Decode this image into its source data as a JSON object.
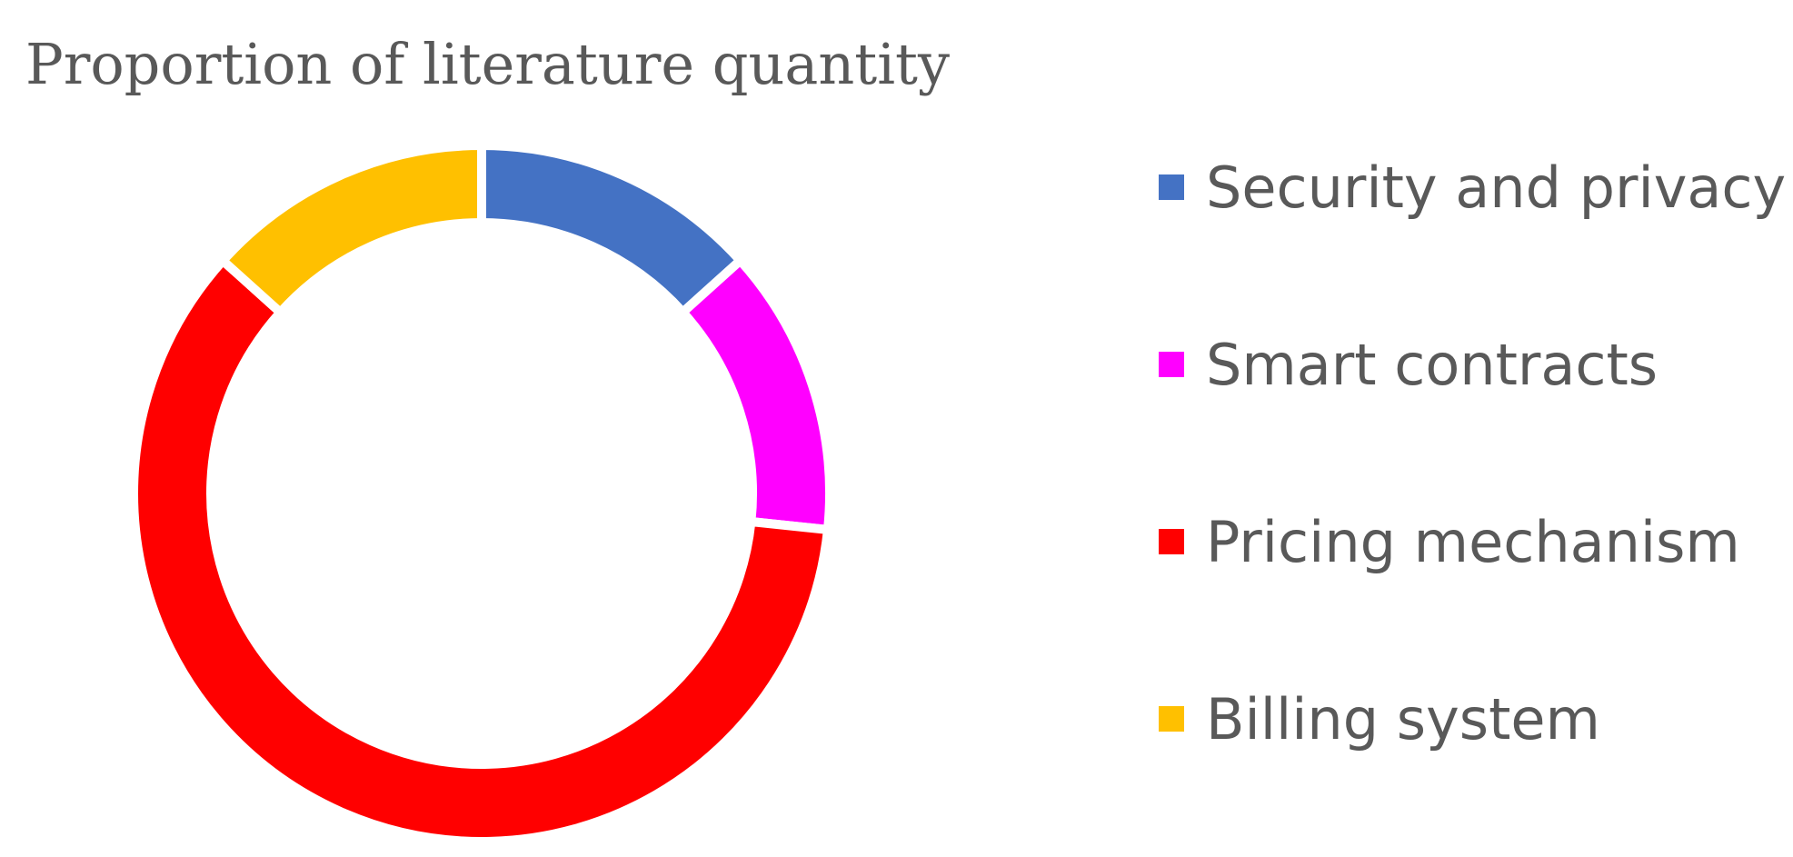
{
  "chart_data": {
    "type": "pie",
    "title": "Proportion of literature quantity",
    "categories": [
      "Security and privacy",
      "Smart contracts",
      "Pricing mechanism",
      "Billing system"
    ],
    "values": [
      0.1333,
      0.1333,
      0.6,
      0.1334
    ],
    "value_unit": "fraction",
    "colors": [
      "#4472C4",
      "#FF00FF",
      "#FF0000",
      "#FFC000"
    ],
    "donut": true,
    "legend_position": "right",
    "start_angle": "top",
    "direction": "clockwise"
  }
}
